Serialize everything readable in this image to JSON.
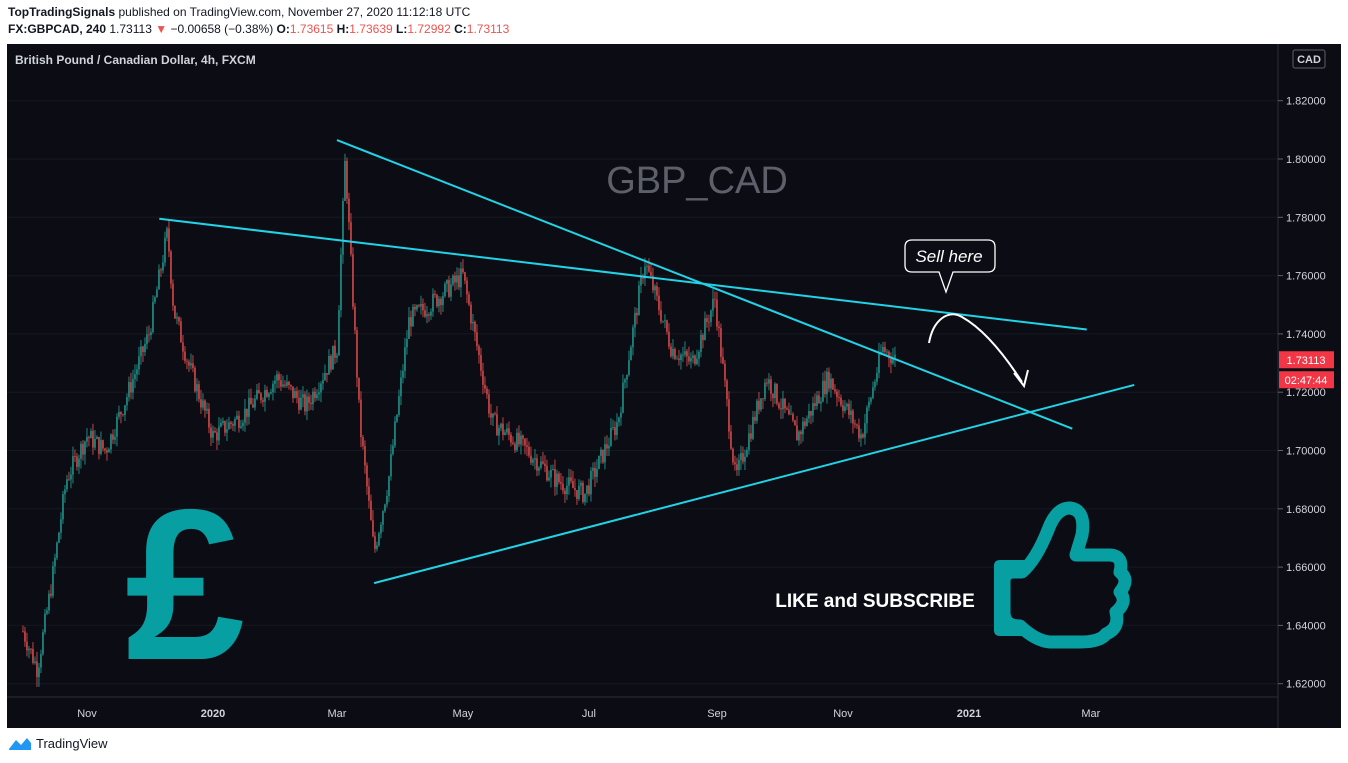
{
  "header": {
    "publisher": "TopTradingSignals",
    "published_text": "published on TradingView.com, November 27, 2020 11:12:18 UTC",
    "symbol_interval": "FX:GBPCAD, 240",
    "last": "1.73113",
    "change_arrow": "▼",
    "change": "−0.00658 (−0.38%)",
    "o_label": "O:",
    "o_value": "1.73615",
    "h_label": "H:",
    "h_value": "1.73639",
    "l_label": "L:",
    "l_value": "1.72992",
    "c_label": "C:",
    "c_value": "1.73113"
  },
  "chart": {
    "legend_title": "British Pound / Canadian Dollar, 4h, FXCM",
    "currency_badge": "CAD",
    "watermark": "GBP_CAD",
    "callout_text": "Sell here",
    "cta_text": "LIKE and SUBSCRIBE",
    "price_label": "1.73113",
    "countdown_label": "02:47:44",
    "pound_symbol": "£",
    "thumbs_icon": "thumbs-up-icon",
    "colors": {
      "background": "#0c0d14",
      "up": "#26a69a",
      "down": "#ef5350",
      "trendline": "#22d3e6",
      "teal_icon": "#089fa3",
      "price_tag": "#f23645"
    }
  },
  "chart_data": {
    "type": "candlestick",
    "title": "British Pound / Canadian Dollar, 4h, FXCM",
    "y_axis": {
      "ticks": [
        "1.82000",
        "1.80000",
        "1.78000",
        "1.76000",
        "1.74000",
        "1.72000",
        "1.70000",
        "1.68000",
        "1.66000",
        "1.64000",
        "1.62000"
      ],
      "range": [
        1.615,
        1.835
      ]
    },
    "x_axis": {
      "ticks": [
        "Nov",
        "2020",
        "Mar",
        "May",
        "Jul",
        "Sep",
        "Nov",
        "2021",
        "Mar"
      ]
    },
    "price_path": {
      "dates": [
        "2019-10-01",
        "2019-10-08",
        "2019-10-15",
        "2019-10-22",
        "2019-11-01",
        "2019-11-10",
        "2019-11-20",
        "2019-12-01",
        "2019-12-10",
        "2019-12-13",
        "2019-12-20",
        "2020-01-01",
        "2020-01-15",
        "2020-02-01",
        "2020-02-15",
        "2020-03-01",
        "2020-03-05",
        "2020-03-12",
        "2020-03-19",
        "2020-03-26",
        "2020-04-05",
        "2020-04-15",
        "2020-05-01",
        "2020-05-15",
        "2020-06-01",
        "2020-06-15",
        "2020-06-29",
        "2020-07-15",
        "2020-07-28",
        "2020-08-10",
        "2020-08-20",
        "2020-08-31",
        "2020-09-10",
        "2020-09-25",
        "2020-10-10",
        "2020-10-25",
        "2020-11-10",
        "2020-11-20",
        "2020-11-27"
      ],
      "values": [
        1.638,
        1.625,
        1.655,
        1.69,
        1.705,
        1.7,
        1.718,
        1.74,
        1.775,
        1.748,
        1.73,
        1.705,
        1.712,
        1.725,
        1.715,
        1.735,
        1.8,
        1.71,
        1.665,
        1.69,
        1.745,
        1.75,
        1.76,
        1.71,
        1.7,
        1.69,
        1.685,
        1.71,
        1.765,
        1.735,
        1.73,
        1.752,
        1.69,
        1.725,
        1.705,
        1.725,
        1.705,
        1.735,
        1.731
      ]
    },
    "last_price": 1.73113,
    "trendlines": [
      {
        "name": "upper resistance",
        "from": [
          "2019-12-06",
          1.7795
        ],
        "to": [
          "2021-02-27",
          1.7415
        ]
      },
      {
        "name": "descending",
        "from": [
          "2020-03-01",
          1.8065
        ],
        "to": [
          "2021-02-20",
          1.7075
        ]
      },
      {
        "name": "ascending support",
        "from": [
          "2020-03-19",
          1.6545
        ],
        "to": [
          "2021-03-22",
          1.7225
        ]
      }
    ],
    "annotations": [
      "GBP_CAD",
      "Sell here",
      "LIKE and SUBSCRIBE"
    ]
  },
  "footer": {
    "brand": "TradingView",
    "logo_icon": "tradingview-logo-icon"
  }
}
